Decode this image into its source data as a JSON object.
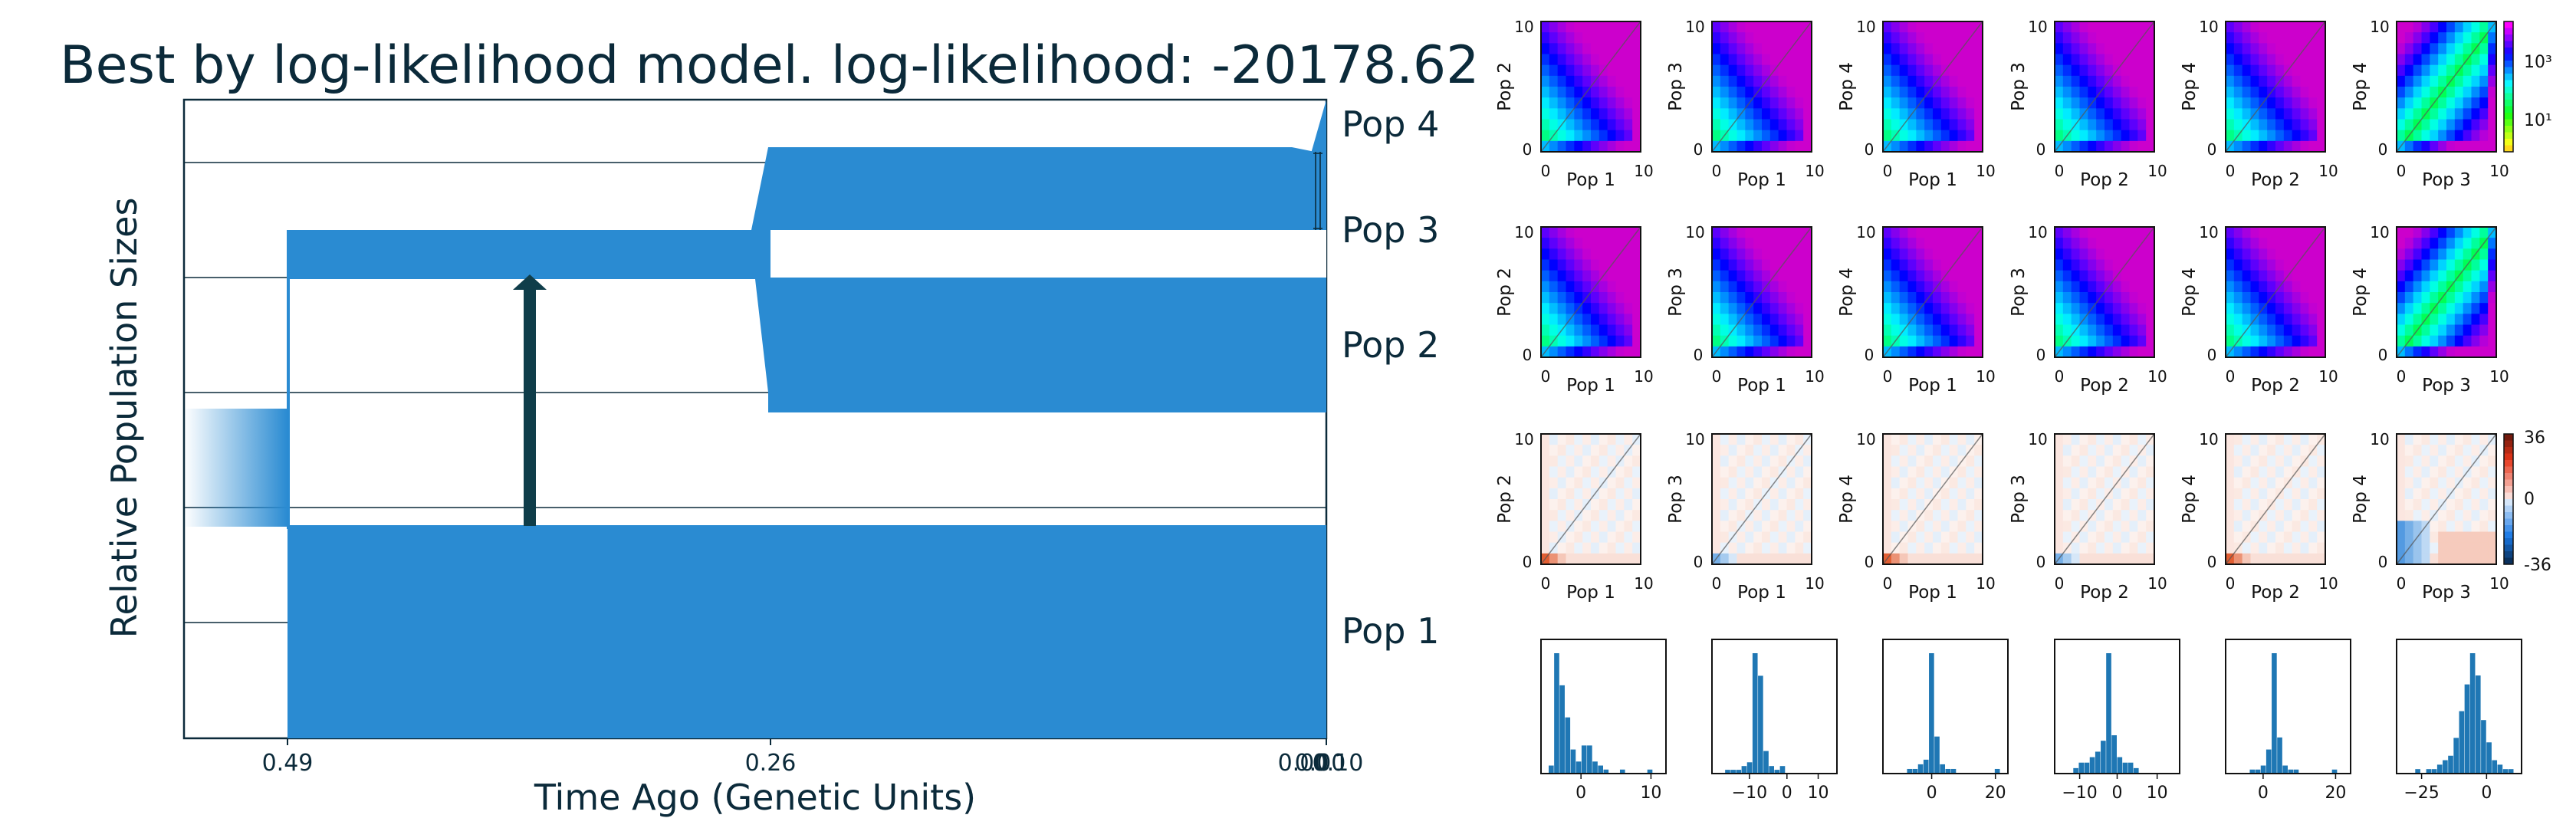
{
  "title": "Best by log-likelihood model. log-likelihood: -20178.62",
  "demography": {
    "ylabel": "Relative Population Sizes",
    "xlabel": "Time Ago (Genetic Units)",
    "x_ticks": [
      "0.49",
      "0.26",
      "0.00",
      "0.00",
      "0.10"
    ],
    "populations": [
      "Pop 1",
      "Pop 2",
      "Pop 3",
      "Pop 4"
    ],
    "colors": {
      "fill": "#2a8bd2",
      "arrow": "#0f3d4a",
      "text": "#0b2a3a"
    }
  },
  "chart_data": [
    {
      "type": "heatmap",
      "name": "data-sfs",
      "panels": [
        {
          "ylabel": "Pop 2",
          "xlabel": "Pop 1",
          "ticks": [
            "0",
            "10",
            "0",
            "10"
          ]
        },
        {
          "ylabel": "Pop 3",
          "xlabel": "Pop 1",
          "ticks": [
            "0",
            "10",
            "0",
            "10"
          ]
        },
        {
          "ylabel": "Pop 4",
          "xlabel": "Pop 1",
          "ticks": [
            "0",
            "10",
            "0",
            "10"
          ]
        },
        {
          "ylabel": "Pop 3",
          "xlabel": "Pop 2",
          "ticks": [
            "0",
            "10",
            "0",
            "10"
          ]
        },
        {
          "ylabel": "Pop 4",
          "xlabel": "Pop 2",
          "ticks": [
            "0",
            "10",
            "0",
            "10"
          ]
        },
        {
          "ylabel": "Pop 4",
          "xlabel": "Pop 3",
          "ticks": [
            "0",
            "10",
            "0",
            "10"
          ]
        }
      ],
      "colorbar": {
        "scale": "log",
        "ticks": [
          "10³",
          "10¹"
        ]
      }
    },
    {
      "type": "heatmap",
      "name": "model-sfs",
      "panels": [
        {
          "ylabel": "Pop 2",
          "xlabel": "Pop 1",
          "ticks": [
            "0",
            "10",
            "0",
            "10"
          ]
        },
        {
          "ylabel": "Pop 3",
          "xlabel": "Pop 1",
          "ticks": [
            "0",
            "10",
            "0",
            "10"
          ]
        },
        {
          "ylabel": "Pop 4",
          "xlabel": "Pop 1",
          "ticks": [
            "0",
            "10",
            "0",
            "10"
          ]
        },
        {
          "ylabel": "Pop 3",
          "xlabel": "Pop 2",
          "ticks": [
            "0",
            "10",
            "0",
            "10"
          ]
        },
        {
          "ylabel": "Pop 4",
          "xlabel": "Pop 2",
          "ticks": [
            "0",
            "10",
            "0",
            "10"
          ]
        },
        {
          "ylabel": "Pop 4",
          "xlabel": "Pop 3",
          "ticks": [
            "0",
            "10",
            "0",
            "10"
          ]
        }
      ]
    },
    {
      "type": "heatmap",
      "name": "residuals",
      "panels": [
        {
          "ylabel": "Pop 2",
          "xlabel": "Pop 1",
          "ticks": [
            "0",
            "10",
            "0",
            "10"
          ]
        },
        {
          "ylabel": "Pop 3",
          "xlabel": "Pop 1",
          "ticks": [
            "0",
            "10",
            "0",
            "10"
          ]
        },
        {
          "ylabel": "Pop 4",
          "xlabel": "Pop 1",
          "ticks": [
            "0",
            "10",
            "0",
            "10"
          ]
        },
        {
          "ylabel": "Pop 3",
          "xlabel": "Pop 2",
          "ticks": [
            "0",
            "10",
            "0",
            "10"
          ]
        },
        {
          "ylabel": "Pop 4",
          "xlabel": "Pop 2",
          "ticks": [
            "0",
            "10",
            "0",
            "10"
          ]
        },
        {
          "ylabel": "Pop 4",
          "xlabel": "Pop 3",
          "ticks": [
            "0",
            "10",
            "0",
            "10"
          ]
        }
      ],
      "colorbar": {
        "ticks": [
          "36",
          "0",
          "-36"
        ],
        "range": [
          -36,
          36
        ]
      }
    },
    {
      "type": "bar",
      "name": "residual-histograms",
      "panels": [
        {
          "xticks": [
            "0",
            "10"
          ],
          "values": [
            2,
            30,
            22,
            14,
            6,
            3,
            7,
            7,
            3,
            2,
            1,
            0,
            0,
            1,
            0,
            0,
            0,
            0,
            1,
            0
          ]
        },
        {
          "xticks": [
            "−10",
            "0",
            "10"
          ],
          "values": [
            0,
            1,
            1,
            1,
            2,
            3,
            32,
            26,
            6,
            2,
            1,
            2,
            0,
            0,
            0,
            0,
            0,
            0,
            0,
            0
          ]
        },
        {
          "xticks": [
            "0",
            "20"
          ],
          "values": [
            0,
            0,
            0,
            1,
            1,
            2,
            3,
            26,
            8,
            2,
            1,
            1,
            0,
            0,
            0,
            0,
            0,
            0,
            0,
            1
          ]
        },
        {
          "xticks": [
            "−10",
            "0",
            "10"
          ],
          "values": [
            0,
            0,
            1,
            2,
            2,
            3,
            4,
            6,
            22,
            7,
            3,
            2,
            2,
            1,
            0,
            0,
            0,
            0,
            0,
            0
          ]
        },
        {
          "xticks": [
            "0",
            "20"
          ],
          "values": [
            0,
            0,
            0,
            1,
            1,
            2,
            6,
            30,
            9,
            2,
            1,
            1,
            0,
            0,
            0,
            0,
            0,
            0,
            1,
            0
          ]
        },
        {
          "xticks": [
            "−25",
            "0"
          ],
          "values": [
            0,
            0,
            1,
            0,
            1,
            1,
            2,
            3,
            4,
            8,
            14,
            20,
            27,
            22,
            12,
            7,
            3,
            2,
            1,
            1
          ]
        }
      ]
    }
  ]
}
